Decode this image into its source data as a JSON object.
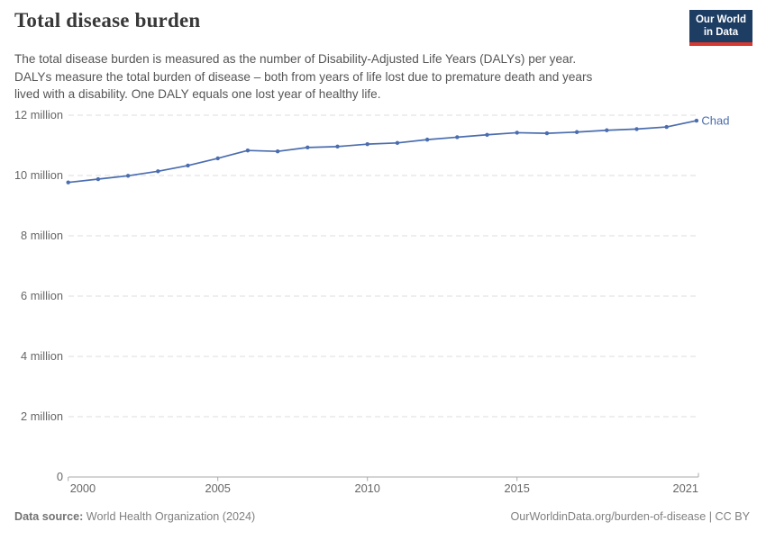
{
  "header": {
    "title": "Total disease burden",
    "subtitle_lines": [
      "The total disease burden is measured as the number of Disability-Adjusted Life Years (DALYs) per year.",
      "DALYs measure the total burden of disease – both from years of life lost due to premature death and years",
      "lived with a disability. One DALY equals one lost year of healthy life."
    ],
    "logo": {
      "line1": "Our World",
      "line2": "in Data",
      "bg_color": "#1d3d63",
      "stripe_color": "#d9382e"
    }
  },
  "chart_data": {
    "type": "line",
    "title": "Total disease burden",
    "ylabel": "",
    "xlabel": "",
    "unit": "million DALYs",
    "grid": true,
    "legend_position": "end-of-line",
    "ylim_millions": [
      0,
      12
    ],
    "y_ticks_millions": [
      0,
      2,
      4,
      6,
      8,
      10,
      12
    ],
    "x_ticks": [
      2000,
      2005,
      2010,
      2015,
      2021
    ],
    "x": [
      2000,
      2001,
      2002,
      2003,
      2004,
      2005,
      2006,
      2007,
      2008,
      2009,
      2010,
      2011,
      2012,
      2013,
      2014,
      2015,
      2016,
      2017,
      2018,
      2019,
      2020,
      2021
    ],
    "series": [
      {
        "name": "Chad",
        "color": "#4a6daf",
        "values_millions": [
          9.77,
          9.88,
          9.99,
          10.14,
          10.33,
          10.57,
          10.83,
          10.8,
          10.93,
          10.96,
          11.04,
          11.08,
          11.19,
          11.27,
          11.35,
          11.42,
          11.4,
          11.44,
          11.5,
          11.54,
          11.61,
          11.82
        ]
      }
    ]
  },
  "axis": {
    "zero_label": "0",
    "tick_suffix": " million"
  },
  "footer": {
    "source_label": "Data source:",
    "source_value": " World Health Organization (2024)",
    "credit": "OurWorldinData.org/burden-of-disease | CC BY"
  }
}
